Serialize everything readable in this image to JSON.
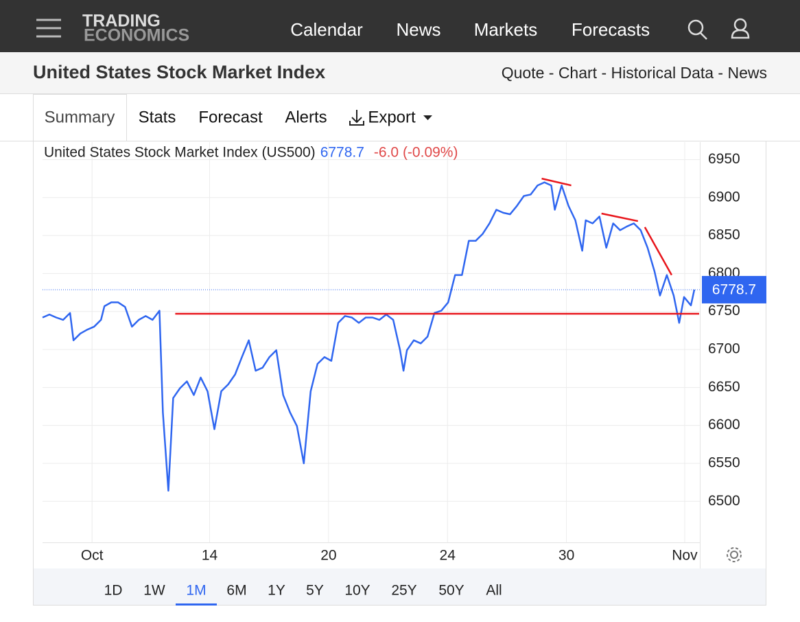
{
  "nav": {
    "logo_line1": "TRADING",
    "logo_line2": "ECONOMICS",
    "items": [
      "Calendar",
      "News",
      "Markets",
      "Forecasts"
    ]
  },
  "header": {
    "title": "United States Stock Market Index",
    "links": "Quote - Chart - Historical Data - News"
  },
  "tabs": [
    "Summary",
    "Stats",
    "Forecast",
    "Alerts",
    "Export"
  ],
  "chart_data": {
    "type": "line",
    "title": "United States Stock Market Index (US500)",
    "last_value": 6778.7,
    "change_label": "-6.0 (-0.09%)",
    "color": "#2f66f0",
    "x": [
      0,
      1,
      2,
      3,
      4,
      4.5,
      5.5,
      6.5,
      7.5,
      8.5,
      9,
      10,
      11,
      12,
      13,
      14,
      15,
      16,
      17,
      17.5,
      18.3,
      19,
      20,
      21,
      22,
      23,
      24,
      25,
      26,
      27,
      28,
      29,
      30,
      31,
      32,
      33,
      34,
      35,
      36,
      37,
      38,
      39,
      40,
      41,
      42,
      43,
      44,
      45,
      46,
      47,
      48,
      49,
      50,
      51,
      52,
      52.5,
      53,
      54,
      55,
      56,
      57,
      58,
      59,
      60,
      61,
      62,
      63,
      64,
      65,
      66,
      67,
      68,
      69,
      70,
      71,
      72,
      73,
      74,
      74.5,
      75.5,
      76.5,
      77.5,
      78.5,
      79,
      80,
      81,
      82,
      83,
      84,
      85,
      86,
      87,
      88,
      89,
      89.8,
      90.8,
      91.8,
      92.6,
      93.3,
      94.3,
      94.8
    ],
    "values": [
      6742,
      6746,
      6742,
      6739,
      6748,
      6712,
      6721,
      6726,
      6730,
      6739,
      6757,
      6762,
      6762,
      6756,
      6730,
      6739,
      6744,
      6739,
      6751,
      6617,
      6514,
      6636,
      6649,
      6658,
      6640,
      6663,
      6645,
      6595,
      6645,
      6654,
      6667,
      6690,
      6712,
      6672,
      6676,
      6690,
      6699,
      6640,
      6617,
      6599,
      6550,
      6645,
      6681,
      6690,
      6685,
      6735,
      6744,
      6742,
      6735,
      6742,
      6742,
      6739,
      6746,
      6739,
      6699,
      6672,
      6699,
      6712,
      6708,
      6717,
      6748,
      6751,
      6762,
      6798,
      6798,
      6843,
      6843,
      6852,
      6866,
      6884,
      6880,
      6878,
      6889,
      6902,
      6904,
      6916,
      6920,
      6916,
      6884,
      6916,
      6889,
      6870,
      6830,
      6870,
      6866,
      6875,
      6834,
      6866,
      6857,
      6862,
      6866,
      6857,
      6834,
      6803,
      6771,
      6798,
      6771,
      6735,
      6769,
      6758,
      6778.7
    ],
    "xlim": [
      0,
      95.6
    ],
    "ylim": [
      6446,
      6973
    ],
    "xticks": [
      {
        "value": 7.2,
        "label": "Oct"
      },
      {
        "value": 24.3,
        "label": "14"
      },
      {
        "value": 41.6,
        "label": "20"
      },
      {
        "value": 58.9,
        "label": "24"
      },
      {
        "value": 76.2,
        "label": "30"
      },
      {
        "value": 93.4,
        "label": "Nov"
      }
    ],
    "yticks": [
      6500,
      6550,
      6600,
      6650,
      6700,
      6750,
      6800,
      6850,
      6900,
      6950
    ],
    "grid": true,
    "trend_lines": [
      {
        "color": "#e8151b",
        "x": [
          19.3,
          95.5
        ],
        "y": [
          6747,
          6747
        ]
      },
      {
        "color": "#e8151b",
        "x": [
          72.6,
          76.9
        ],
        "y": [
          6925,
          6916
        ]
      },
      {
        "color": "#e8151b",
        "x": [
          81.3,
          86.6
        ],
        "y": [
          6879,
          6869
        ]
      },
      {
        "color": "#e8151b",
        "x": [
          87.6,
          91.5
        ],
        "y": [
          6861,
          6798
        ]
      }
    ]
  },
  "ranges": [
    "1D",
    "1W",
    "1M",
    "6M",
    "1Y",
    "5Y",
    "10Y",
    "25Y",
    "50Y",
    "All"
  ],
  "active_range": 2
}
